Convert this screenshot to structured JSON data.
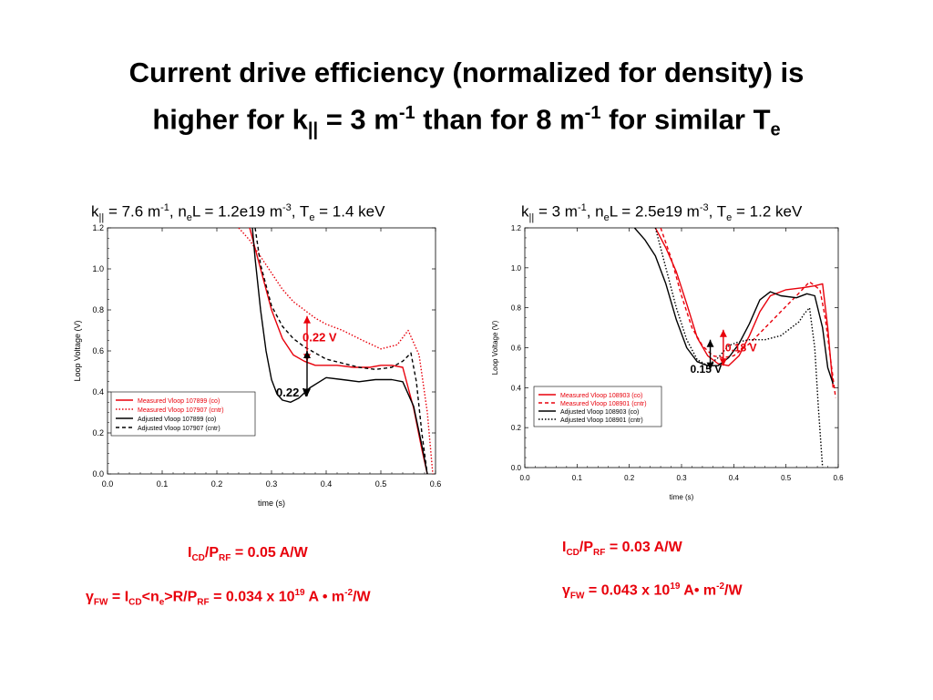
{
  "title": {
    "line1": "Current drive efficiency (normalized for density) is",
    "l2_a": "higher for k",
    "l2_sub1": "||",
    "l2_b": " = 3 m",
    "l2_sup1": "-1",
    "l2_c": " than for 8 m",
    "l2_sup2": "-1",
    "l2_d": " for similar T",
    "l2_sub2": "e"
  },
  "left_panel": {
    "subtitle": {
      "k": "k",
      "k_sub": "||",
      "k_val": " = 7.6 m",
      "k_sup": "-1",
      "n": ", n",
      "n_sub": "e",
      "n_val": "L = 1.2e19 m",
      "n_sup": "-3",
      "t": ", T",
      "t_sub": "e",
      "t_val": " = 1.4 keV"
    },
    "eq1": {
      "a": "I",
      "a_sub": "CD",
      "b": "/P",
      "b_sub": "RF",
      "c": " = 0.05 A/W"
    },
    "eq2": {
      "g": "γ",
      "g_sub": "FW",
      "a": " = I",
      "a_sub": "CD",
      "b": "<n",
      "b_sub": "e",
      "c": ">R/P",
      "c_sub": "RF",
      "d": " = 0.034 x 10",
      "d_sup": "19",
      "e": " A • m",
      "e_sup": "-2",
      "f": "/W"
    }
  },
  "right_panel": {
    "subtitle": {
      "k": "k",
      "k_sub": "||",
      "k_val": " = 3 m",
      "k_sup": "-1",
      "n": ", n",
      "n_sub": "e",
      "n_val": "L = 2.5e19 m",
      "n_sup": "-3",
      "t": ", T",
      "t_sub": "e",
      "t_val": " = 1.2 keV"
    },
    "eq1": {
      "a": "I",
      "a_sub": "CD",
      "b": "/P",
      "b_sub": "RF",
      "c": " = 0.03 A/W"
    },
    "eq2": {
      "g": "γ",
      "g_sub": "FW",
      "d": " = 0.043 x 10",
      "d_sup": "19",
      "e": " A• m",
      "e_sup": "-2",
      "f": "/W"
    }
  },
  "colors": {
    "measured": "#e8000b",
    "adjusted": "#000000",
    "equation_text": "#e8000b"
  },
  "chart_data": [
    {
      "type": "line",
      "xlabel": "time (s)",
      "ylabel": "Loop Voltage (V)",
      "xlim": [
        0,
        0.6
      ],
      "ylim": [
        0,
        1.2
      ],
      "xticks": [
        "0.0",
        "0.1",
        "0.2",
        "0.3",
        "0.4",
        "0.5",
        "0.6"
      ],
      "yticks": [
        "0.0",
        "0.2",
        "0.4",
        "0.6",
        "0.8",
        "1.0",
        "1.2"
      ],
      "grid": false,
      "legend_position": "center-left",
      "series": [
        {
          "name": "Measured Vloop 107899 (co)",
          "color": "#e8000b",
          "dash": "solid",
          "x": [
            0.26,
            0.28,
            0.3,
            0.32,
            0.34,
            0.36,
            0.38,
            0.4,
            0.42,
            0.45,
            0.48,
            0.5,
            0.52,
            0.54,
            0.56,
            0.575,
            0.585
          ],
          "y": [
            1.2,
            1.0,
            0.8,
            0.66,
            0.58,
            0.55,
            0.53,
            0.53,
            0.53,
            0.52,
            0.52,
            0.53,
            0.53,
            0.52,
            0.32,
            0.12,
            0.0
          ]
        },
        {
          "name": "Measured Vloop 107907 (cntr)",
          "color": "#e8000b",
          "dash": "dotted",
          "x": [
            0.24,
            0.26,
            0.28,
            0.3,
            0.32,
            0.34,
            0.36,
            0.38,
            0.4,
            0.43,
            0.46,
            0.5,
            0.53,
            0.55,
            0.57,
            0.585,
            0.595
          ],
          "y": [
            1.2,
            1.14,
            1.06,
            0.98,
            0.9,
            0.84,
            0.8,
            0.76,
            0.73,
            0.7,
            0.66,
            0.61,
            0.63,
            0.7,
            0.58,
            0.3,
            0.0
          ]
        },
        {
          "name": "Adjusted Vloop 107899 (co)",
          "color": "#000000",
          "dash": "solid",
          "x": [
            0.265,
            0.27,
            0.28,
            0.29,
            0.3,
            0.31,
            0.32,
            0.335,
            0.35,
            0.37,
            0.4,
            0.43,
            0.46,
            0.49,
            0.52,
            0.54,
            0.56,
            0.575,
            0.585
          ],
          "y": [
            1.2,
            1.05,
            0.8,
            0.6,
            0.46,
            0.39,
            0.36,
            0.35,
            0.37,
            0.42,
            0.47,
            0.46,
            0.45,
            0.46,
            0.46,
            0.45,
            0.33,
            0.14,
            0.0
          ]
        },
        {
          "name": "Adjusted Vloop 107907 (cntr)",
          "color": "#000000",
          "dash": "dashed",
          "x": [
            0.27,
            0.28,
            0.3,
            0.32,
            0.34,
            0.36,
            0.38,
            0.4,
            0.43,
            0.46,
            0.49,
            0.52,
            0.54,
            0.555,
            0.565,
            0.575,
            0.585
          ],
          "y": [
            1.2,
            1.02,
            0.82,
            0.72,
            0.66,
            0.62,
            0.59,
            0.56,
            0.54,
            0.52,
            0.51,
            0.52,
            0.55,
            0.59,
            0.45,
            0.2,
            0.0
          ]
        }
      ],
      "annotations": [
        {
          "text": "0.22 V",
          "color": "#e8000b",
          "x": 0.365,
          "y_from": 0.55,
          "y_to": 0.77
        },
        {
          "text": "0.22 V",
          "color": "#000000",
          "x": 0.365,
          "y_from": 0.38,
          "y_to": 0.6
        }
      ]
    },
    {
      "type": "line",
      "xlabel": "time (s)",
      "ylabel": "Loop Voltage (V)",
      "xlim": [
        0,
        0.6
      ],
      "ylim": [
        0,
        1.2
      ],
      "xticks": [
        "0.0",
        "0.1",
        "0.2",
        "0.3",
        "0.4",
        "0.5",
        "0.6"
      ],
      "yticks": [
        "0.0",
        "0.2",
        "0.4",
        "0.6",
        "0.8",
        "1.0",
        "1.2"
      ],
      "grid": false,
      "legend_position": "center-left",
      "series": [
        {
          "name": "Measured Vloop 108903 (co)",
          "color": "#e8000b",
          "dash": "solid",
          "x": [
            0.25,
            0.27,
            0.29,
            0.31,
            0.33,
            0.35,
            0.37,
            0.39,
            0.41,
            0.43,
            0.45,
            0.47,
            0.5,
            0.53,
            0.555,
            0.57,
            0.58,
            0.59
          ],
          "y": [
            1.2,
            1.1,
            0.98,
            0.82,
            0.65,
            0.56,
            0.52,
            0.51,
            0.56,
            0.66,
            0.78,
            0.86,
            0.89,
            0.9,
            0.91,
            0.92,
            0.7,
            0.4
          ]
        },
        {
          "name": "Measured Vloop 108901 (cntr)",
          "color": "#e8000b",
          "dash": "dashed",
          "x": [
            0.26,
            0.28,
            0.3,
            0.32,
            0.34,
            0.36,
            0.38,
            0.4,
            0.43,
            0.46,
            0.49,
            0.52,
            0.545,
            0.565,
            0.575,
            0.585,
            0.595
          ],
          "y": [
            1.2,
            1.05,
            0.86,
            0.7,
            0.61,
            0.56,
            0.55,
            0.56,
            0.62,
            0.7,
            0.78,
            0.86,
            0.93,
            0.89,
            0.75,
            0.55,
            0.35
          ]
        },
        {
          "name": "Adjusted Vloop 108903 (co)",
          "color": "#000000",
          "dash": "solid",
          "x": [
            0.21,
            0.23,
            0.25,
            0.27,
            0.29,
            0.31,
            0.33,
            0.35,
            0.37,
            0.39,
            0.41,
            0.43,
            0.45,
            0.47,
            0.49,
            0.52,
            0.54,
            0.555,
            0.57,
            0.58,
            0.59
          ],
          "y": [
            1.2,
            1.14,
            1.06,
            0.92,
            0.74,
            0.6,
            0.53,
            0.51,
            0.51,
            0.55,
            0.62,
            0.72,
            0.84,
            0.88,
            0.86,
            0.85,
            0.87,
            0.86,
            0.7,
            0.5,
            0.42
          ]
        },
        {
          "name": "Adjusted Vloop 108901 (cntr)",
          "color": "#000000",
          "dash": "dotted",
          "x": [
            0.25,
            0.27,
            0.29,
            0.31,
            0.33,
            0.35,
            0.37,
            0.39,
            0.41,
            0.43,
            0.46,
            0.49,
            0.51,
            0.525,
            0.535,
            0.545,
            0.555,
            0.562,
            0.57
          ],
          "y": [
            1.2,
            1.0,
            0.8,
            0.64,
            0.54,
            0.51,
            0.55,
            0.61,
            0.63,
            0.64,
            0.64,
            0.66,
            0.7,
            0.73,
            0.77,
            0.8,
            0.6,
            0.3,
            0.0
          ]
        }
      ],
      "annotations": [
        {
          "text": "0.18 V",
          "color": "#e8000b",
          "x": 0.38,
          "y_from": 0.51,
          "y_to": 0.69
        },
        {
          "text": "0.15 V",
          "color": "#000000",
          "x": 0.355,
          "y_from": 0.49,
          "y_to": 0.64
        }
      ]
    }
  ]
}
